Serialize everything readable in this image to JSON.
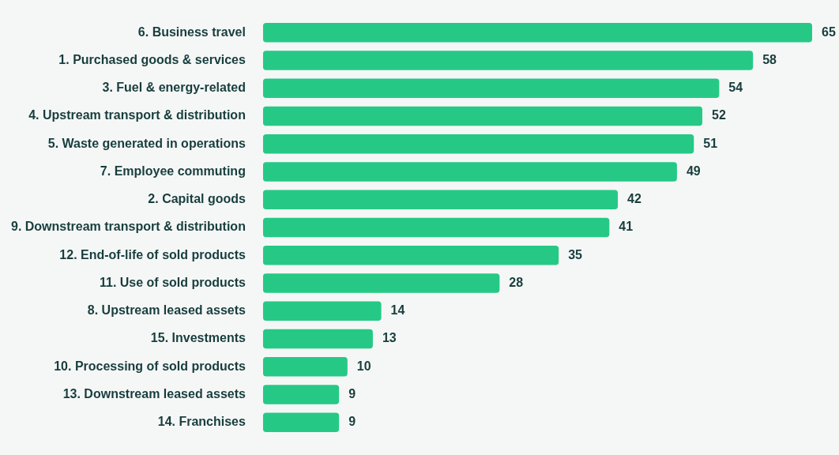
{
  "chart_data": {
    "type": "bar",
    "orientation": "horizontal",
    "data_labels": true,
    "color": "#25c985",
    "categories": [
      "6. Business travel",
      "1. Purchased goods & services",
      "3. Fuel & energy-related",
      "4. Upstream transport & distribution",
      "5. Waste generated in operations",
      "7. Employee commuting",
      "2. Capital goods",
      "9. Downstream transport & distribution",
      "12. End-of-life of sold products",
      "11. Use of sold products",
      "8. Upstream leased assets",
      "15. Investments",
      "10. Processing of sold products",
      "13. Downstream leased assets",
      "14. Franchises"
    ],
    "values": [
      65,
      58,
      54,
      52,
      51,
      49,
      42,
      41,
      35,
      28,
      14,
      13,
      10,
      9,
      9
    ]
  }
}
